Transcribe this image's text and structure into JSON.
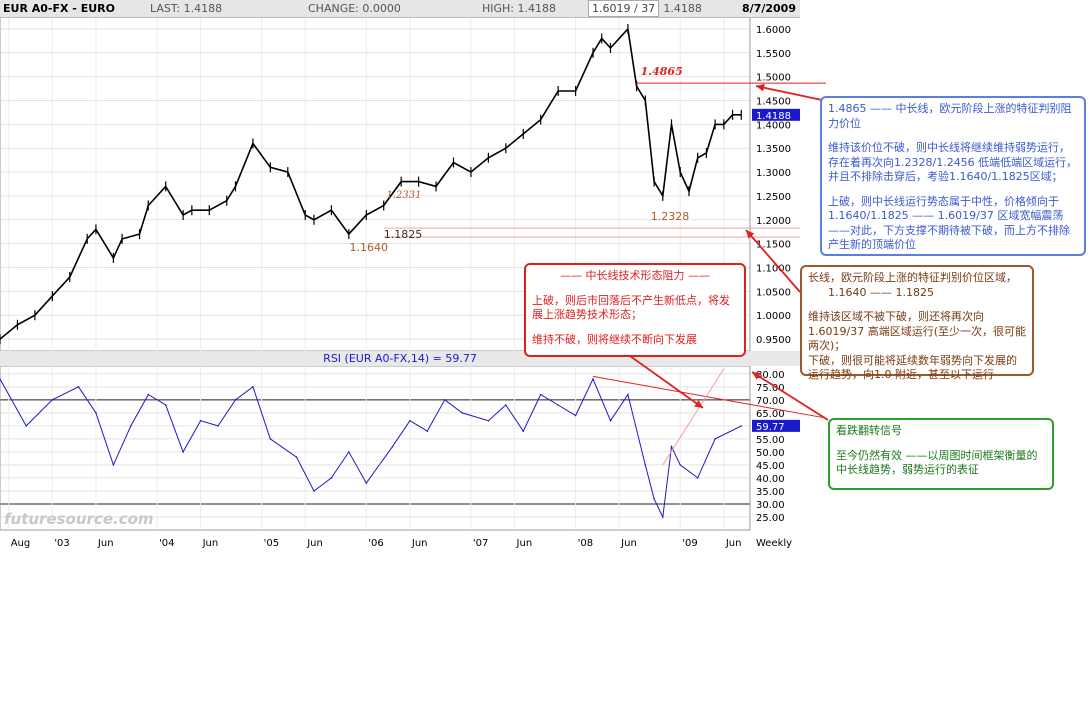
{
  "header": {
    "title": "EUR A0-FX - EURO",
    "last": "LAST: 1.4188",
    "change": "CHANGE: 0.0000",
    "high": "HIGH: 1.4188",
    "low": "L: 1.4188",
    "date": "8/7/2009",
    "high_badge": "1.6019 / 37"
  },
  "watermark": "futuresource.com",
  "colors": {
    "price": "#000000",
    "rsi": "#1a1acc",
    "red": "#e02020",
    "blue": "#5b7fe0",
    "brown": "#9a5a2d",
    "green": "#2aa02a",
    "accent_label": "#b05a2a"
  },
  "chart_data": [
    {
      "type": "line",
      "title": "EUR A0-FX - EURO",
      "ylabel": "",
      "ylim": [
        0.95,
        1.62
      ],
      "y_ticks": [
        "1.6000",
        "1.5500",
        "1.5000",
        "1.4500",
        "1.4000",
        "1.3500",
        "1.3000",
        "1.2500",
        "1.2000",
        "1.1500",
        "1.1000",
        "1.0500",
        "1.0000",
        "0.9500"
      ],
      "last_value_label": "1.4188",
      "series": [
        {
          "x": [
            "2002-07",
            "2002-09",
            "2002-11",
            "2003-01",
            "2003-03",
            "2003-05",
            "2003-06",
            "2003-08",
            "2003-09",
            "2003-11",
            "2003-12",
            "2004-02",
            "2004-04",
            "2004-05",
            "2004-07",
            "2004-09",
            "2004-10",
            "2004-12",
            "2005-02",
            "2005-04",
            "2005-06",
            "2005-07",
            "2005-09",
            "2005-11",
            "2006-01",
            "2006-03",
            "2006-05",
            "2006-07",
            "2006-09",
            "2006-11",
            "2007-01",
            "2007-03",
            "2007-05",
            "2007-07",
            "2007-09",
            "2007-11",
            "2008-01",
            "2008-03",
            "2008-04",
            "2008-05",
            "2008-07",
            "2008-08",
            "2008-09",
            "2008-10",
            "2008-11",
            "2008-12",
            "2009-01",
            "2009-02",
            "2009-03",
            "2009-04",
            "2009-05",
            "2009-06",
            "2009-07",
            "2009-08"
          ],
          "values": [
            0.95,
            0.98,
            1.0,
            1.04,
            1.08,
            1.16,
            1.18,
            1.12,
            1.16,
            1.17,
            1.23,
            1.27,
            1.21,
            1.22,
            1.22,
            1.24,
            1.27,
            1.36,
            1.31,
            1.3,
            1.21,
            1.2,
            1.22,
            1.17,
            1.21,
            1.23,
            1.28,
            1.28,
            1.27,
            1.32,
            1.3,
            1.33,
            1.35,
            1.38,
            1.41,
            1.47,
            1.47,
            1.55,
            1.58,
            1.56,
            1.6,
            1.48,
            1.45,
            1.28,
            1.25,
            1.4,
            1.3,
            1.26,
            1.33,
            1.34,
            1.4,
            1.4,
            1.42,
            1.42
          ]
        }
      ],
      "annotations": [
        {
          "label": "1.6019 / 37",
          "y": 1.6019
        },
        {
          "label": "1.4865",
          "y": 1.4865
        },
        {
          "label": "1.2331",
          "y": 1.2331
        },
        {
          "label": "1.2328",
          "y": 1.2328
        },
        {
          "label": "1.1825",
          "y": 1.1825
        },
        {
          "label": "1.1640",
          "y": 1.164
        }
      ]
    },
    {
      "type": "line",
      "title": "RSI (EUR A0-FX,14) = 59.77",
      "ylim": [
        20,
        85
      ],
      "y_ticks": [
        "80.00",
        "75.00",
        "70.00",
        "65.00",
        "60.00",
        "55.00",
        "50.00",
        "45.00",
        "40.00",
        "35.00",
        "30.00",
        "25.00"
      ],
      "last_value_label": "59.77",
      "reference_lines": [
        30,
        70
      ],
      "series": [
        {
          "name": "RSI",
          "x": [
            "2002-07",
            "2002-10",
            "2003-01",
            "2003-04",
            "2003-06",
            "2003-08",
            "2003-10",
            "2003-12",
            "2004-02",
            "2004-04",
            "2004-06",
            "2004-08",
            "2004-10",
            "2004-12",
            "2005-02",
            "2005-05",
            "2005-07",
            "2005-09",
            "2005-11",
            "2006-01",
            "2006-04",
            "2006-06",
            "2006-08",
            "2006-10",
            "2006-12",
            "2007-03",
            "2007-05",
            "2007-07",
            "2007-09",
            "2007-11",
            "2008-01",
            "2008-03",
            "2008-05",
            "2008-07",
            "2008-09",
            "2008-10",
            "2008-11",
            "2008-12",
            "2009-01",
            "2009-03",
            "2009-05",
            "2009-08"
          ],
          "values": [
            78,
            60,
            70,
            75,
            65,
            45,
            60,
            72,
            68,
            50,
            62,
            60,
            70,
            75,
            55,
            48,
            35,
            40,
            50,
            38,
            52,
            62,
            58,
            70,
            65,
            62,
            68,
            58,
            72,
            68,
            64,
            78,
            62,
            72,
            45,
            32,
            25,
            52,
            45,
            40,
            55,
            60
          ]
        }
      ]
    }
  ],
  "x_ticks": [
    "Aug",
    "'03",
    "Jun",
    "'04",
    "Jun",
    "'05",
    "Jun",
    "'06",
    "Jun",
    "'07",
    "Jun",
    "'08",
    "Jun",
    "'09",
    "Jun",
    "Weekly"
  ],
  "notes": {
    "blue": [
      "1.4865 —— 中长线，欧元阶段上涨的特征判别阻力价位",
      "",
      "维持该价位不破，则中长线将继续维持弱势运行，存在着再次向1.2328/1.2456 低端低端区域运行，并且不排除击穿后，考验1.1640/1.1825区域；",
      "",
      "上破，则中长线运行势态属于中性，价格倾向于1.1640/1.1825 —— 1.6019/37 区域宽幅震荡 ——对此，下方支撑不期待被下破，而上方不排除产生新的顶端价位"
    ],
    "brown": [
      "长线，欧元阶段上涨的特征判别价位区域，",
      "1.1640 —— 1.1825",
      "",
      "维持该区域不被下破，则还将再次向1.6019/37 高端区域运行(至少一次，很可能两次)；",
      "下破，则很可能将延续数年弱势向下发展的运行趋势，向1.0 附近，甚至以下运行"
    ],
    "red": [
      "—— 中长线技术形态阻力 ——",
      "",
      "上破，则后市回落后不产生新低点，将发展上涨趋势技术形态；",
      "",
      "维持不破，则将继续不断向下发展"
    ],
    "green": [
      "看跌翻转信号",
      "",
      "至今仍然有效 ——以周图时间框架衡量的中长线趋势，弱势运行的表征"
    ]
  }
}
